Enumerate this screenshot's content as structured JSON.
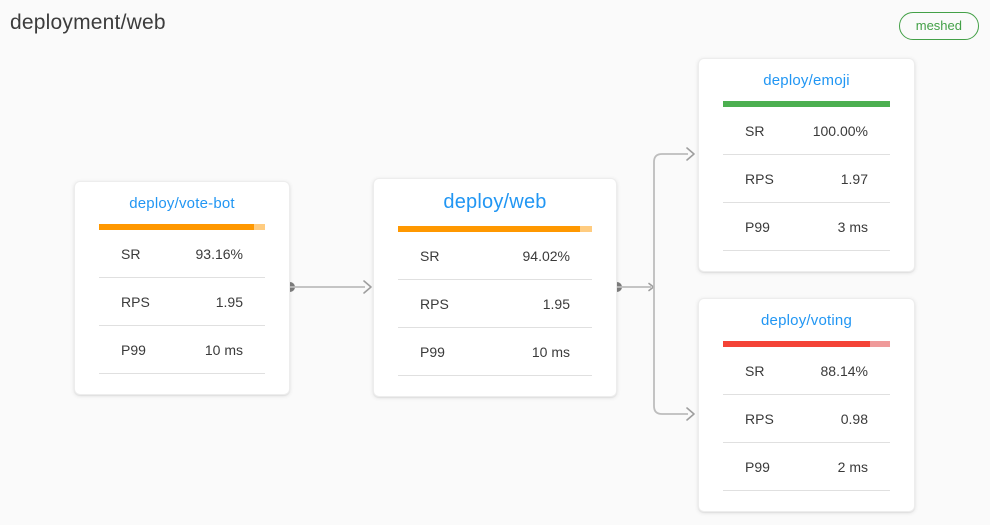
{
  "page": {
    "title": "deployment/web",
    "badge_label": "meshed"
  },
  "colors": {
    "accent_blue": "#2196f3",
    "success_green": "#4caf50",
    "warning_orange": "#ff9800",
    "danger_red": "#f44336",
    "badge_green": "#43a047"
  },
  "nodes": [
    {
      "name": "deploy/vote-bot",
      "success_rate_pct": 93.16,
      "bar_color": "#ff9800",
      "bar_tail_color": "#ffcc80",
      "metrics": [
        {
          "label": "SR",
          "value": "93.16%"
        },
        {
          "label": "RPS",
          "value": "1.95"
        },
        {
          "label": "P99",
          "value": "10 ms"
        }
      ]
    },
    {
      "name": "deploy/web",
      "success_rate_pct": 94.02,
      "bar_color": "#ff9800",
      "bar_tail_color": "#ffcc80",
      "metrics": [
        {
          "label": "SR",
          "value": "94.02%"
        },
        {
          "label": "RPS",
          "value": "1.95"
        },
        {
          "label": "P99",
          "value": "10 ms"
        }
      ]
    },
    {
      "name": "deploy/emoji",
      "success_rate_pct": 100,
      "bar_color": "#4caf50",
      "bar_tail_color": "#a5d6a7",
      "metrics": [
        {
          "label": "SR",
          "value": "100.00%"
        },
        {
          "label": "RPS",
          "value": "1.97"
        },
        {
          "label": "P99",
          "value": "3 ms"
        }
      ]
    },
    {
      "name": "deploy/voting",
      "success_rate_pct": 88.14,
      "bar_color": "#f44336",
      "bar_tail_color": "#ef9a9a",
      "metrics": [
        {
          "label": "SR",
          "value": "88.14%"
        },
        {
          "label": "RPS",
          "value": "0.98"
        },
        {
          "label": "P99",
          "value": "2 ms"
        }
      ]
    }
  ],
  "edges": [
    {
      "from": "deploy/vote-bot",
      "to": "deploy/web"
    },
    {
      "from": "deploy/web",
      "to": "deploy/emoji"
    },
    {
      "from": "deploy/web",
      "to": "deploy/voting"
    }
  ]
}
